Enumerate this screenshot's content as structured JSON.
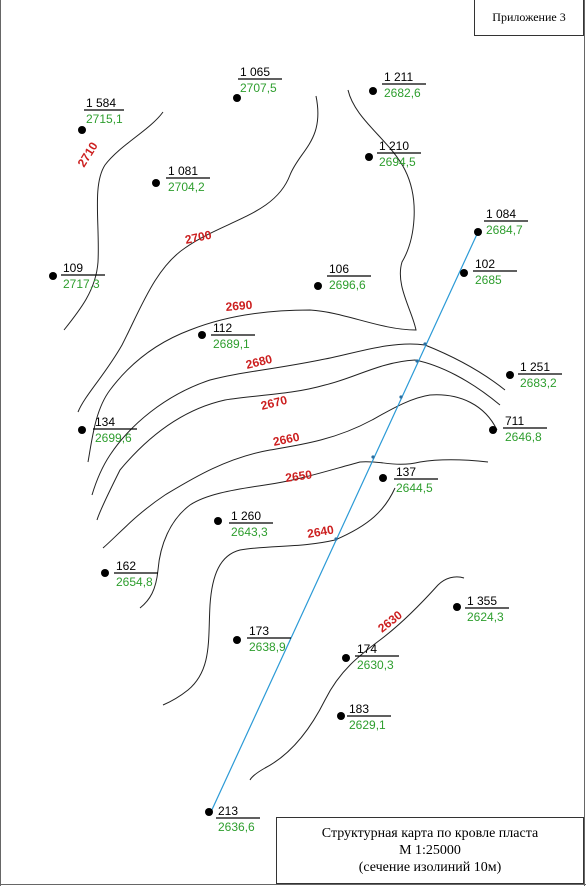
{
  "header": {
    "appendix": "Приложение 3"
  },
  "title_block": {
    "line1": "Структурная карта по кровле пласта",
    "line2": "М 1:25000",
    "line3": "(сечение изолиний 10м)"
  },
  "colors": {
    "well_number": "#000000",
    "well_depth": "#2e9e2e",
    "contour_label": "#cc1f1f",
    "contour_line": "#222222",
    "profile_line": "#2b9ad6",
    "well_marker": "#000000"
  },
  "wells": [
    {
      "id": "1 584",
      "depth": "2715,1"
    },
    {
      "id": "1 065",
      "depth": "2707,5"
    },
    {
      "id": "1 211",
      "depth": "2682,6"
    },
    {
      "id": "1 210",
      "depth": "2694,5"
    },
    {
      "id": "1 081",
      "depth": "2704,2"
    },
    {
      "id": "1 084",
      "depth": "2684,7"
    },
    {
      "id": "109",
      "depth": "2717,3"
    },
    {
      "id": "106",
      "depth": "2696,6"
    },
    {
      "id": "102",
      "depth": "2685"
    },
    {
      "id": "112",
      "depth": "2689,1"
    },
    {
      "id": "1 251",
      "depth": "2683,2"
    },
    {
      "id": "134",
      "depth": "2699,6"
    },
    {
      "id": "711",
      "depth": "2646,8"
    },
    {
      "id": "137",
      "depth": "2644,5"
    },
    {
      "id": "1 260",
      "depth": "2643,3"
    },
    {
      "id": "162",
      "depth": "2654,8"
    },
    {
      "id": "1 355",
      "depth": "2624,3"
    },
    {
      "id": "173",
      "depth": "2638,9"
    },
    {
      "id": "174",
      "depth": "2630,3"
    },
    {
      "id": "183",
      "depth": "2629,1"
    },
    {
      "id": "213",
      "depth": "2636,6"
    }
  ],
  "contours": [
    {
      "label": "2710"
    },
    {
      "label": "2700"
    },
    {
      "label": "2690"
    },
    {
      "label": "2680"
    },
    {
      "label": "2670"
    },
    {
      "label": "2660"
    },
    {
      "label": "2650"
    },
    {
      "label": "2640"
    },
    {
      "label": "2630"
    }
  ]
}
